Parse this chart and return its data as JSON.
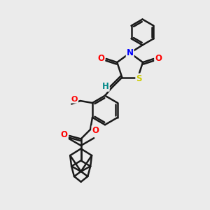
{
  "bg_color": "#ebebeb",
  "bond_color": "#1a1a1a",
  "bond_width": 1.8,
  "atom_colors": {
    "O": "#ff0000",
    "N": "#0000ff",
    "S": "#cccc00",
    "H_label": "#008888",
    "C": "#1a1a1a"
  },
  "font_size_atom": 8.5
}
